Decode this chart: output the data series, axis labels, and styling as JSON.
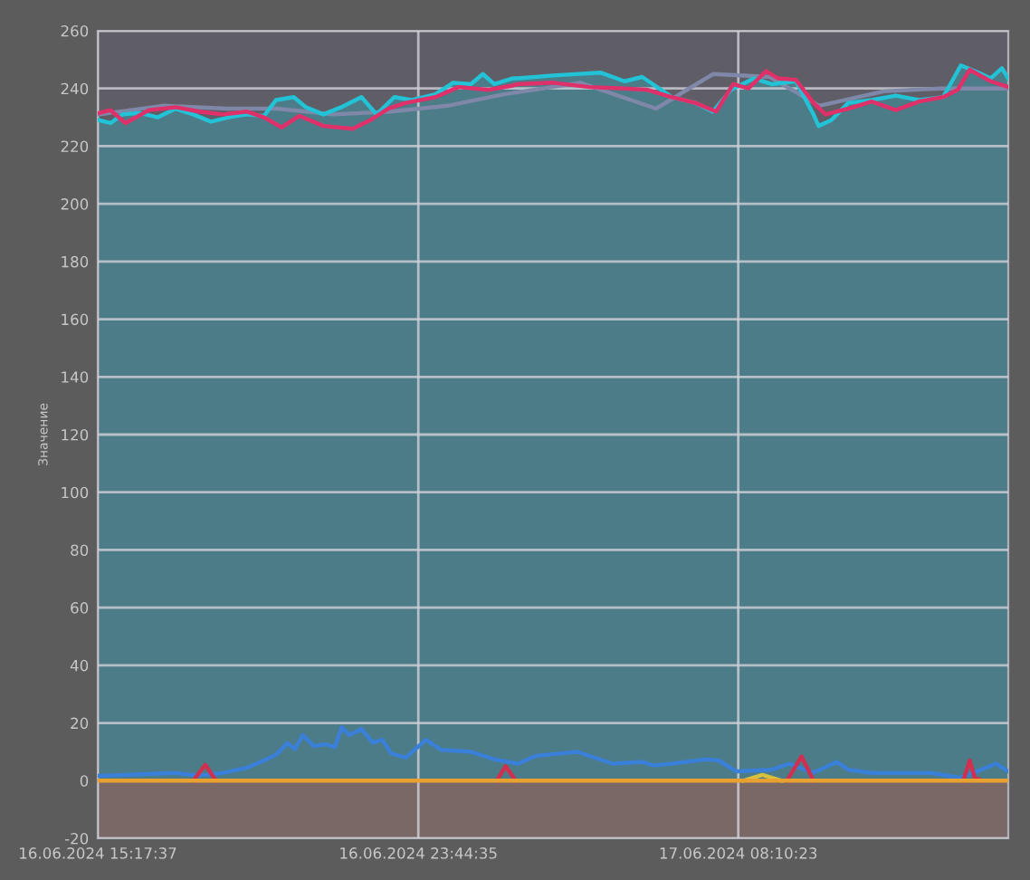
{
  "chart_data": {
    "type": "line",
    "ylabel": "Значение",
    "xlim": [
      "2024-06-16T15:17",
      "2024-06-17T15:17"
    ],
    "ylim": [
      -20,
      260
    ],
    "xticks": [
      {
        "value": "2024-06-16T15:17",
        "label": "16.06.2024 15:17:37"
      },
      {
        "value": "2024-06-16T23:44",
        "label": "16.06.2024 23:44:35"
      },
      {
        "value": "2024-06-17T08:10",
        "label": "17.06.2024 08:10:23"
      }
    ],
    "yticks": [
      -20,
      0,
      20,
      40,
      60,
      80,
      100,
      120,
      140,
      160,
      180,
      200,
      220,
      240,
      260
    ],
    "grid": true,
    "marker": "none",
    "line_style": "solid",
    "series": [
      {
        "color": "#7f88a8",
        "x": [
          "2024-06-16T15:19",
          "2024-06-16T17:00",
          "2024-06-16T18:42",
          "2024-06-16T20:00",
          "2024-06-16T21:30",
          "2024-06-16T23:00",
          "2024-06-17T00:30",
          "2024-06-17T02:00",
          "2024-06-17T04:00",
          "2024-06-17T06:00",
          "2024-06-17T07:30",
          "2024-06-17T09:00",
          "2024-06-17T10:18",
          "2024-06-17T12:00",
          "2024-06-17T13:30",
          "2024-06-17T15:17"
        ],
        "values": [
          231,
          234,
          233,
          233,
          231,
          232,
          234,
          238,
          242,
          233,
          245,
          244,
          234,
          239,
          240,
          240
        ]
      },
      {
        "type": "area",
        "color": "#22c3d6",
        "x": [
          "2024-06-16T15:19",
          "2024-06-16T15:37",
          "2024-06-16T15:56",
          "2024-06-16T16:24",
          "2024-06-16T16:52",
          "2024-06-16T17:20",
          "2024-06-16T17:48",
          "2024-06-16T18:16",
          "2024-06-16T18:44",
          "2024-06-16T19:12",
          "2024-06-16T19:40",
          "2024-06-16T19:59",
          "2024-06-16T20:27",
          "2024-06-16T20:46",
          "2024-06-16T21:14",
          "2024-06-16T21:42",
          "2024-06-16T22:14",
          "2024-06-16T22:38",
          "2024-06-16T23:06",
          "2024-06-16T23:34",
          "2024-06-17T00:11",
          "2024-06-17T00:39",
          "2024-06-17T01:07",
          "2024-06-17T01:26",
          "2024-06-17T01:44",
          "2024-06-17T02:13",
          "2024-06-17T02:22",
          "2024-06-17T03:17",
          "2024-06-17T04:32",
          "2024-06-17T05:10",
          "2024-06-17T05:38",
          "2024-06-17T06:25",
          "2024-06-17T07:02",
          "2024-06-17T07:30",
          "2024-06-17T07:58",
          "2024-06-17T08:35",
          "2024-06-17T09:03",
          "2024-06-17T09:41",
          "2024-06-17T10:09",
          "2024-06-17T10:17",
          "2024-06-17T10:37",
          "2024-06-17T11:04",
          "2024-06-17T11:41",
          "2024-06-17T12:19",
          "2024-06-17T12:56",
          "2024-06-17T13:34",
          "2024-06-17T14:02",
          "2024-06-17T14:30",
          "2024-06-17T14:49",
          "2024-06-17T15:07",
          "2024-06-17T15:17"
        ],
        "values": [
          229,
          228,
          231,
          231.5,
          230,
          233,
          231,
          228.5,
          230,
          231,
          230.5,
          236,
          237,
          233.5,
          231,
          233.5,
          237,
          231,
          237,
          236,
          238,
          242,
          241.5,
          245,
          241.5,
          243.5,
          243.5,
          244.5,
          245.5,
          242.5,
          244,
          237,
          235,
          232,
          239.5,
          243.5,
          241.5,
          242.5,
          231,
          227,
          229,
          235,
          236,
          237.5,
          236,
          237,
          248,
          245.5,
          243.5,
          247,
          243.5
        ]
      },
      {
        "color": "#e0306a",
        "x": [
          "2024-06-16T15:19",
          "2024-06-16T15:37",
          "2024-06-16T16:01",
          "2024-06-16T16:38",
          "2024-06-16T17:20",
          "2024-06-16T17:57",
          "2024-06-16T18:35",
          "2024-06-16T19:12",
          "2024-06-16T19:40",
          "2024-06-16T20:08",
          "2024-06-16T20:36",
          "2024-06-16T21:14",
          "2024-06-16T22:00",
          "2024-06-16T22:28",
          "2024-06-16T22:56",
          "2024-06-16T23:24",
          "2024-06-17T00:11",
          "2024-06-17T00:48",
          "2024-06-17T01:35",
          "2024-06-17T02:13",
          "2024-06-17T02:22",
          "2024-06-17T03:17",
          "2024-06-17T04:14",
          "2024-06-17T05:10",
          "2024-06-17T05:47",
          "2024-06-17T06:25",
          "2024-06-17T07:02",
          "2024-06-17T07:35",
          "2024-06-17T08:02",
          "2024-06-17T08:26",
          "2024-06-17T08:54",
          "2024-06-17T09:13",
          "2024-06-17T09:41",
          "2024-06-17T10:09",
          "2024-06-17T10:28",
          "2024-06-17T11:04",
          "2024-06-17T11:41",
          "2024-06-17T12:19",
          "2024-06-17T12:56",
          "2024-06-17T13:34",
          "2024-06-17T13:57",
          "2024-06-17T14:16",
          "2024-06-17T14:49",
          "2024-06-17T15:17"
        ],
        "values": [
          231.5,
          232.5,
          228,
          232.5,
          233.5,
          232,
          231,
          232,
          230,
          226.5,
          230.5,
          227,
          226,
          229,
          233,
          235,
          237,
          240.5,
          239.5,
          241,
          241.5,
          242,
          240.5,
          240,
          239.5,
          237,
          235,
          232,
          241.5,
          240,
          246,
          243.5,
          243,
          235,
          231,
          233,
          235.5,
          232.5,
          235.5,
          237,
          239.5,
          246.5,
          242.5,
          240.5
        ]
      },
      {
        "color": "#3a7fd8",
        "x": [
          "2024-06-16T15:19",
          "2024-06-16T17:20",
          "2024-06-16T17:57",
          "2024-06-16T18:35",
          "2024-06-16T19:12",
          "2024-06-16T19:40",
          "2024-06-16T19:59",
          "2024-06-16T20:17",
          "2024-06-16T20:29",
          "2024-06-16T20:41",
          "2024-06-16T20:59",
          "2024-06-16T21:18",
          "2024-06-16T21:32",
          "2024-06-16T21:43",
          "2024-06-16T21:55",
          "2024-06-16T22:14",
          "2024-06-16T22:32",
          "2024-06-16T22:47",
          "2024-06-16T23:01",
          "2024-06-16T23:24",
          "2024-06-16T23:56",
          "2024-06-17T00:20",
          "2024-06-17T01:07",
          "2024-06-17T01:44",
          "2024-06-17T02:22",
          "2024-06-17T02:50",
          "2024-06-17T03:55",
          "2024-06-17T04:51",
          "2024-06-17T05:38",
          "2024-06-17T05:56",
          "2024-06-17T06:25",
          "2024-06-17T07:20",
          "2024-06-17T07:39",
          "2024-06-17T08:07",
          "2024-06-17T09:03",
          "2024-06-17T09:31",
          "2024-06-17T10:08",
          "2024-06-17T10:46",
          "2024-06-17T11:04",
          "2024-06-17T11:41",
          "2024-06-17T13:15",
          "2024-06-17T14:02",
          "2024-06-17T14:58",
          "2024-06-17T15:17"
        ],
        "values": [
          1.7,
          2.7,
          1.7,
          2.7,
          4.4,
          7,
          9,
          13,
          11,
          15.8,
          12,
          12.6,
          11.6,
          18.5,
          15.8,
          17.9,
          13.2,
          14.2,
          9.5,
          8,
          14.2,
          10.7,
          10,
          7.4,
          5.9,
          8.6,
          10,
          5.9,
          6.5,
          5.3,
          5.9,
          7.4,
          7,
          3.2,
          3.8,
          5.9,
          2.7,
          6.5,
          3.8,
          2.7,
          2.7,
          1,
          5.9,
          3.2
        ]
      },
      {
        "color": "#d03050",
        "x": [
          "2024-06-16T17:48",
          "2024-06-16T18:07",
          "2024-06-16T18:24",
          "2024-06-16T22:00",
          "2024-06-17T01:48",
          "2024-06-17T02:02",
          "2024-06-17T02:18",
          "2024-06-17T06:00",
          "2024-06-17T09:27",
          "2024-06-17T09:50",
          "2024-06-17T10:09",
          "2024-06-17T12:00",
          "2024-06-17T14:06",
          "2024-06-17T14:16",
          "2024-06-17T14:24",
          "2024-06-17T14:36"
        ],
        "values": [
          0,
          5.5,
          0,
          null,
          0,
          5,
          0,
          null,
          0,
          8.4,
          0,
          null,
          0,
          7,
          1,
          0
        ]
      },
      {
        "color": "#d8c040",
        "x": [
          "2024-06-17T08:18",
          "2024-06-17T08:48",
          "2024-06-17T09:18"
        ],
        "values": [
          0,
          2,
          0
        ]
      },
      {
        "color": "#e8a030",
        "x": [
          "2024-06-16T15:19",
          "2024-06-17T15:17"
        ],
        "values": [
          0,
          0
        ]
      }
    ],
    "bands": [
      {
        "axis": "y",
        "from": -20,
        "to": 0,
        "color": "#8a6f66"
      }
    ]
  }
}
